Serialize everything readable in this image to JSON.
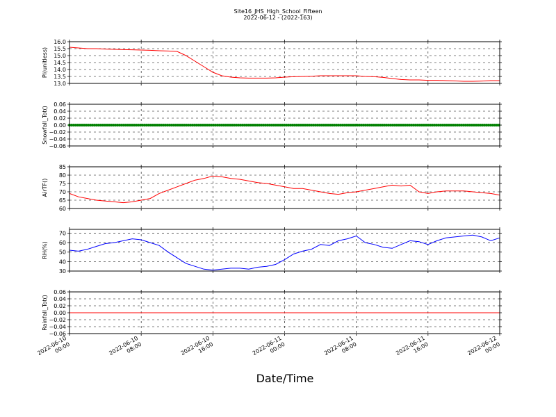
{
  "title": "Site16_JHS_High_School_Fifteen",
  "subtitle": "2022-06-12 - (2022-163)",
  "xlabel": "Date/Time",
  "x_ticks": [
    {
      "line1": "2022-06-10",
      "line2": "00:00"
    },
    {
      "line1": "2022-06-10",
      "line2": "08:00"
    },
    {
      "line1": "2022-06-10",
      "line2": "16:00"
    },
    {
      "line1": "2022-06-11",
      "line2": "00:00"
    },
    {
      "line1": "2022-06-11",
      "line2": "08:00"
    },
    {
      "line1": "2022-06-11",
      "line2": "16:00"
    },
    {
      "line1": "2022-06-12",
      "line2": "00:00"
    }
  ],
  "chart_data": [
    {
      "type": "line",
      "ylabel": "Pl(unitless)",
      "ylim": [
        13.0,
        16.0
      ],
      "yticks": [
        "16.0",
        "15.5",
        "15.0",
        "14.5",
        "14.0",
        "13.5",
        "13.0"
      ],
      "grid": true,
      "color": "#ff0000",
      "xlim_hours": [
        0,
        48
      ],
      "x": [
        0,
        1,
        2,
        3,
        4,
        5,
        6,
        7,
        8,
        9,
        10,
        11,
        12,
        13,
        14,
        15,
        16,
        17,
        18,
        19,
        20,
        21,
        22,
        23,
        24,
        25,
        26,
        27,
        28,
        29,
        30,
        31,
        32,
        33,
        34,
        35,
        36,
        37,
        38,
        39,
        40,
        41,
        42,
        43,
        44,
        45,
        46,
        47,
        48
      ],
      "values": [
        15.6,
        15.55,
        15.5,
        15.5,
        15.47,
        15.45,
        15.43,
        15.42,
        15.4,
        15.38,
        15.35,
        15.33,
        15.3,
        15.0,
        14.6,
        14.2,
        13.8,
        13.55,
        13.45,
        13.4,
        13.38,
        13.38,
        13.38,
        13.4,
        13.45,
        13.48,
        13.5,
        13.52,
        13.55,
        13.55,
        13.55,
        13.55,
        13.55,
        13.5,
        13.48,
        13.43,
        13.35,
        13.28,
        13.25,
        13.25,
        13.22,
        13.22,
        13.2,
        13.18,
        13.15,
        13.15,
        13.17,
        13.2,
        13.2
      ]
    },
    {
      "type": "line",
      "ylabel": "Snowfall_Tot()",
      "ylim": [
        -0.06,
        0.06
      ],
      "yticks": [
        "0.06",
        "0.04",
        "0.02",
        "0.00",
        "−0.02",
        "−0.04",
        "−0.06"
      ],
      "grid": true,
      "color": "#008000",
      "marker": "dot",
      "xlim_hours": [
        0,
        48
      ],
      "x": [
        0,
        48
      ],
      "values": [
        0.0,
        0.0
      ]
    },
    {
      "type": "line",
      "ylabel": "AirTF()",
      "ylim": [
        60,
        85
      ],
      "yticks": [
        "85",
        "80",
        "75",
        "70",
        "65",
        "60"
      ],
      "grid": true,
      "color": "#ff0000",
      "xlim_hours": [
        0,
        48
      ],
      "x": [
        0,
        1,
        2,
        3,
        4,
        5,
        6,
        7,
        8,
        9,
        10,
        11,
        12,
        13,
        14,
        15,
        16,
        17,
        18,
        19,
        20,
        21,
        22,
        23,
        24,
        25,
        26,
        27,
        28,
        29,
        30,
        31,
        32,
        33,
        34,
        35,
        36,
        37,
        38,
        39,
        40,
        41,
        42,
        43,
        44,
        45,
        46,
        47,
        48
      ],
      "values": [
        69,
        67,
        66,
        65,
        64.5,
        64,
        63.5,
        64,
        65,
        66,
        69,
        71,
        73,
        75,
        77,
        78,
        79.5,
        79,
        78,
        77.5,
        76.5,
        75.5,
        75,
        74,
        73,
        72,
        72,
        71,
        70,
        69,
        68.5,
        69.5,
        70,
        71,
        72,
        73,
        74,
        73.5,
        74,
        70,
        69,
        70,
        70.5,
        70.5,
        70.5,
        70,
        69.5,
        69,
        68
      ]
    },
    {
      "type": "line",
      "ylabel": "RH(%)",
      "ylim": [
        30,
        74
      ],
      "yticks": [
        "70",
        "60",
        "50",
        "40",
        "30"
      ],
      "grid": true,
      "color": "#0000ff",
      "xlim_hours": [
        0,
        48
      ],
      "x": [
        0,
        1,
        2,
        3,
        4,
        5,
        6,
        7,
        8,
        9,
        10,
        11,
        12,
        13,
        14,
        15,
        16,
        17,
        18,
        19,
        20,
        21,
        22,
        23,
        24,
        25,
        26,
        27,
        28,
        29,
        30,
        31,
        32,
        33,
        34,
        35,
        36,
        37,
        38,
        39,
        40,
        41,
        42,
        43,
        44,
        45,
        46,
        47,
        48
      ],
      "values": [
        52,
        51,
        53,
        56,
        59,
        60,
        62,
        64,
        63,
        60,
        57,
        50,
        44,
        38,
        35,
        32,
        31,
        32,
        33,
        33,
        32,
        34,
        35,
        37,
        42,
        48,
        51,
        53,
        58,
        57,
        62,
        64,
        67,
        60,
        58,
        55,
        54,
        58,
        62,
        61,
        58,
        62,
        65,
        66,
        67,
        68,
        66,
        62,
        65
      ]
    },
    {
      "type": "line",
      "ylabel": "Rainfall_Tot()",
      "ylim": [
        -0.06,
        0.06
      ],
      "yticks": [
        "0.06",
        "0.04",
        "0.02",
        "0.00",
        "−0.02",
        "−0.04",
        "−0.06"
      ],
      "grid": true,
      "color": "#ff0000",
      "xlim_hours": [
        0,
        48
      ],
      "x": [
        0,
        48
      ],
      "values": [
        0.0,
        0.0
      ]
    }
  ]
}
